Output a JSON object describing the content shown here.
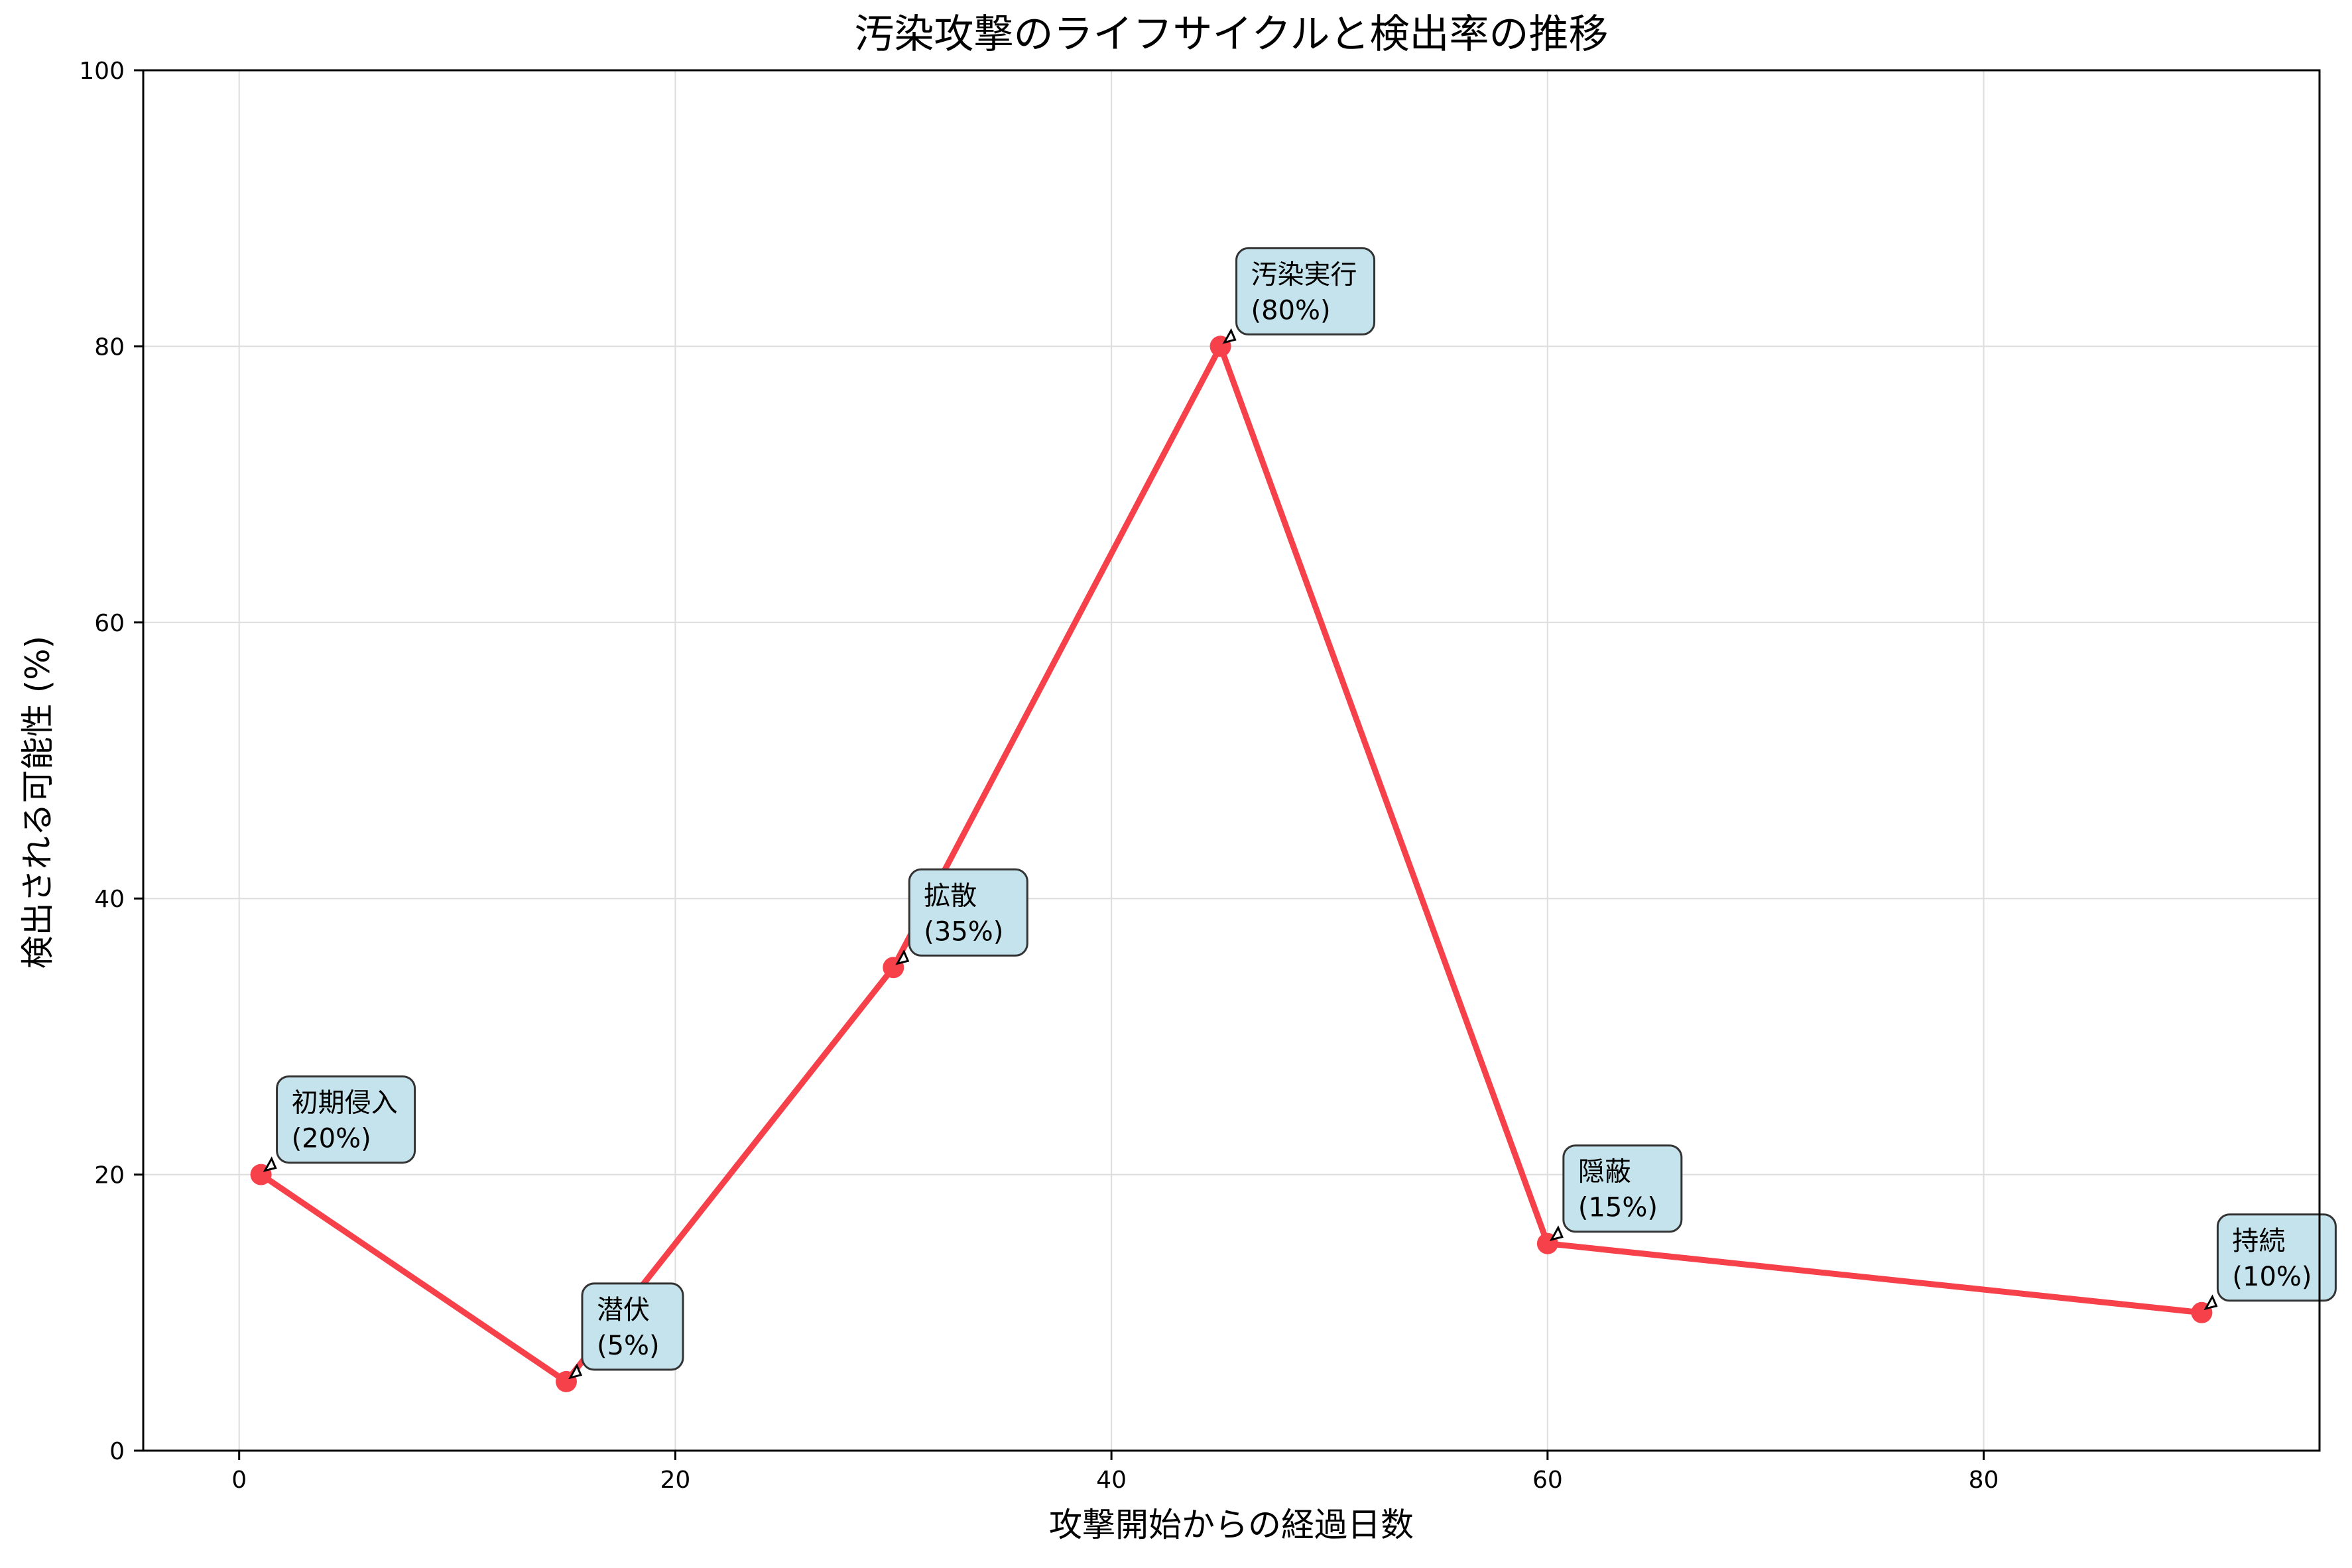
{
  "chart_data": {
    "type": "line",
    "title": "汚染攻撃のライフサイクルと検出率の推移",
    "xlabel": "攻撃開始からの経過日数",
    "ylabel": "検出される可能性 (%)",
    "xlim": [
      -4.4,
      95.4
    ],
    "ylim": [
      0,
      100
    ],
    "xticks": [
      0,
      20,
      40,
      60,
      80
    ],
    "yticks": [
      0,
      20,
      40,
      60,
      80,
      100
    ],
    "grid": true,
    "series": [
      {
        "x": [
          1,
          15,
          30,
          45,
          60,
          90
        ],
        "y": [
          20,
          5,
          35,
          80,
          15,
          10
        ],
        "color": "#f7414a"
      }
    ],
    "annotations": [
      {
        "x": 1,
        "y": 20,
        "name": "初期侵入",
        "value": "(20%)"
      },
      {
        "x": 15,
        "y": 5,
        "name": "潜伏",
        "value": "(5%)"
      },
      {
        "x": 30,
        "y": 35,
        "name": "拡散",
        "value": "(35%)"
      },
      {
        "x": 45,
        "y": 80,
        "name": "汚染実行",
        "value": "(80%)"
      },
      {
        "x": 60,
        "y": 15,
        "name": "隠蔽",
        "value": "(15%)"
      },
      {
        "x": 90,
        "y": 10,
        "name": "持続",
        "value": "(10%)"
      }
    ],
    "annotation_box_color": "#c5e3ec"
  }
}
